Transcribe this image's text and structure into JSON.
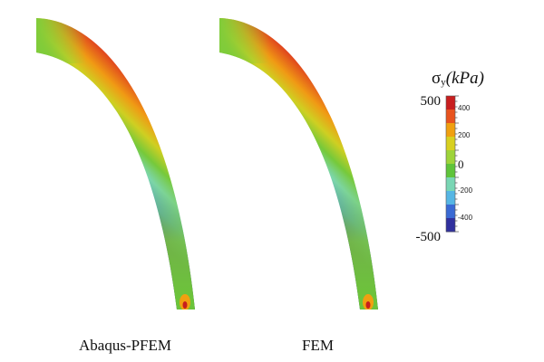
{
  "panels": [
    {
      "label": "Abaqus-PFEM"
    },
    {
      "label": "FEM"
    }
  ],
  "colorbar": {
    "title_symbol": "σ",
    "title_subscript": "y",
    "title_unit": "(kPa)",
    "max_label": "500",
    "min_label": "-500",
    "zero_label": "0",
    "tick_labels": [
      "400",
      "200",
      "-200",
      "-400"
    ],
    "colors": [
      "#c81e1e",
      "#e8531e",
      "#f0a010",
      "#d8d020",
      "#9ed43a",
      "#5fc43a",
      "#79d6b4",
      "#56b6e4",
      "#3a6ad4",
      "#30309e"
    ]
  }
}
